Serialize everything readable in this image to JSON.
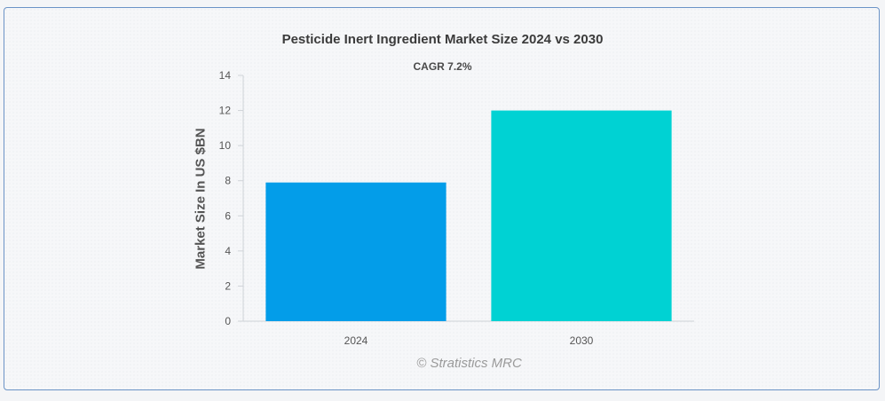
{
  "chart_data": {
    "type": "bar",
    "title": "Pesticide Inert Ingredient Market Size 2024 vs 2030",
    "subtitle": "CAGR 7.2%",
    "ylabel": "Market Size In US $BN",
    "xlabel": "",
    "categories": [
      "2024",
      "2030"
    ],
    "values": [
      7.9,
      12.0
    ],
    "colors": [
      "#039de9",
      "#00d2d3"
    ],
    "ylim": [
      0,
      14
    ],
    "yticks": [
      0,
      2,
      4,
      6,
      8,
      10,
      12,
      14
    ],
    "grid": false,
    "legend": "none"
  },
  "credit": "© Stratistics MRC"
}
